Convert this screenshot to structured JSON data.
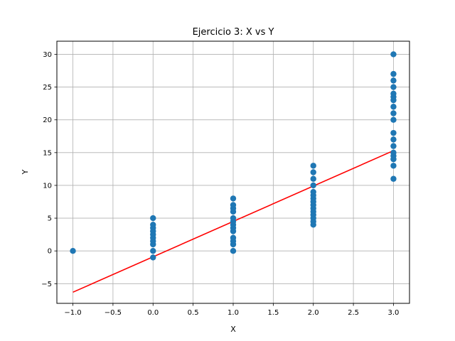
{
  "chart_data": {
    "type": "scatter",
    "title": "Ejercicio 3: X vs Y",
    "xlabel": "X",
    "ylabel": "Y",
    "xlim": [
      -1.2,
      3.2
    ],
    "ylim": [
      -8,
      32
    ],
    "xticks": [
      -1.0,
      -0.5,
      0.0,
      0.5,
      1.0,
      1.5,
      2.0,
      2.5,
      3.0
    ],
    "xtick_labels": [
      "−1.0",
      "−0.5",
      "0.0",
      "0.5",
      "1.0",
      "1.5",
      "2.0",
      "2.5",
      "3.0"
    ],
    "yticks": [
      -5,
      0,
      5,
      10,
      15,
      20,
      25,
      30
    ],
    "ytick_labels": [
      "−5",
      "0",
      "5",
      "10",
      "15",
      "20",
      "25",
      "30"
    ],
    "grid": true,
    "points": {
      "color": "#1f77b4",
      "x": [
        -1,
        0,
        0,
        0,
        0,
        0,
        0,
        0,
        0,
        0,
        0,
        1,
        1,
        1,
        1,
        1,
        1,
        1,
        1,
        1,
        1,
        1,
        1,
        1,
        2,
        2,
        2,
        2,
        2,
        2,
        2,
        2,
        2,
        2,
        2,
        2,
        2,
        2,
        2,
        3,
        3,
        3,
        3,
        3,
        3,
        3,
        3,
        3,
        3,
        3,
        3,
        3,
        3,
        3,
        3,
        3,
        3,
        3
      ],
      "y": [
        0,
        -1,
        0,
        1,
        1.5,
        2,
        2.5,
        3,
        3.5,
        4,
        5,
        0,
        1,
        1.5,
        2,
        3,
        3.5,
        4,
        4.5,
        5,
        6,
        6.5,
        7,
        8,
        4,
        4.5,
        5,
        5.5,
        6,
        6.5,
        7,
        7.5,
        8,
        8.5,
        9,
        10,
        11,
        12,
        13,
        11,
        13,
        14,
        14.5,
        15,
        16,
        17,
        18,
        20,
        21,
        22,
        23,
        23.5,
        24,
        25,
        26,
        27,
        30,
        14
      ]
    },
    "fit_line": {
      "color": "#ff0000",
      "x": [
        -1,
        3
      ],
      "y": [
        -6.3,
        15.3
      ]
    }
  }
}
